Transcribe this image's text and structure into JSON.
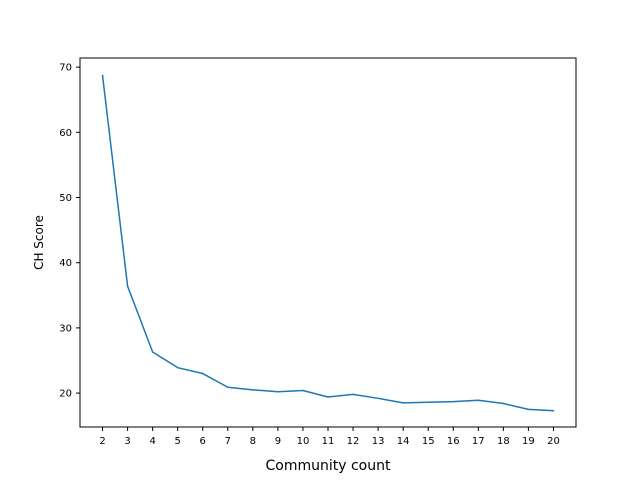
{
  "chart_data": {
    "type": "line",
    "title": "",
    "xlabel": "Community count",
    "ylabel": "CH Score",
    "x": [
      2,
      3,
      4,
      5,
      6,
      7,
      8,
      9,
      10,
      11,
      12,
      13,
      14,
      15,
      16,
      17,
      18,
      19,
      20
    ],
    "x_tick_labels": [
      "2",
      "3",
      "4",
      "5",
      "6",
      "7",
      "8",
      "9",
      "10",
      "11",
      "12",
      "13",
      "14",
      "15",
      "16",
      "17",
      "18",
      "19",
      "20"
    ],
    "y_ticks": [
      20,
      30,
      40,
      50,
      60,
      70
    ],
    "y_tick_labels": [
      "20",
      "30",
      "40",
      "50",
      "60",
      "70"
    ],
    "xlim": [
      1.1,
      20.9
    ],
    "ylim": [
      14.8,
      71.4
    ],
    "grid": false,
    "series": [
      {
        "values": [
          68.7,
          36.4,
          26.3,
          23.9,
          23.0,
          20.9,
          20.5,
          20.2,
          20.4,
          19.4,
          19.8,
          19.2,
          18.5,
          18.6,
          18.7,
          18.9,
          18.4,
          17.5,
          17.3
        ],
        "color": "#1f77b4"
      }
    ]
  }
}
